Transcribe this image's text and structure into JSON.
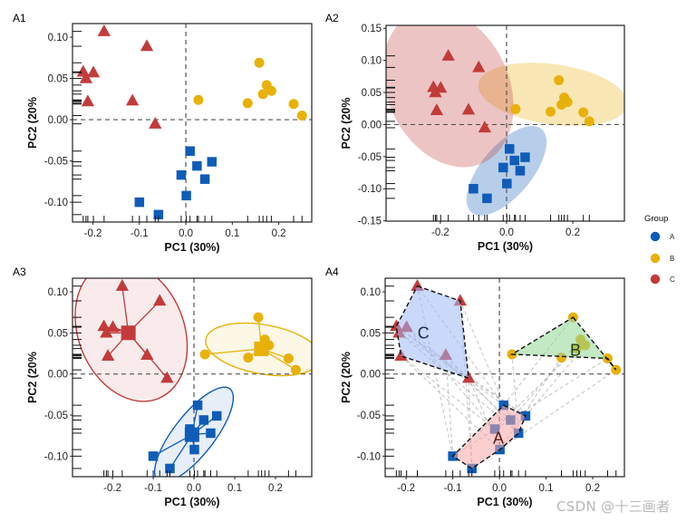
{
  "figure": {
    "watermark": "CSDN @十三画者",
    "legend": {
      "title": "Group",
      "items": [
        {
          "label": "A",
          "color": "#0F5CB8"
        },
        {
          "label": "B",
          "color": "#E8B10A"
        },
        {
          "label": "C",
          "color": "#C23B3B"
        }
      ]
    }
  },
  "chart_data": [
    {
      "id": "A1",
      "panel_label": "A1",
      "type": "scatter",
      "style": "points",
      "xlabel": "PC1 (30%)",
      "ylabel": "PC2 (20%",
      "xlim": [
        -0.244,
        0.271
      ],
      "ylim": [
        -0.124,
        0.1165
      ],
      "xticks": [
        -0.2,
        -0.1,
        0.0,
        0.1,
        0.2
      ],
      "xtick_labels": [
        "-0.2",
        "-0.1",
        "0.0",
        "0.1",
        "0.2"
      ],
      "yticks": [
        -0.1,
        -0.05,
        0.0,
        0.05,
        0.1
      ],
      "ytick_labels": [
        "-0.10",
        "-0.05",
        "0.00",
        "0.05",
        "0.10"
      ],
      "rug": true,
      "reference_lines": {
        "x": 0,
        "y": 0
      },
      "grid": false
    },
    {
      "id": "A2",
      "panel_label": "A2",
      "type": "scatter",
      "style": "ellipse-filled",
      "xlabel": "PC1 (30%)",
      "ylabel": "PC2 (20%",
      "xlim": [
        -0.364,
        0.356
      ],
      "ylim": [
        -0.1505,
        0.1545
      ],
      "xticks": [
        -0.2,
        0.0,
        0.2
      ],
      "xtick_labels": [
        "-0.2",
        "0.0",
        "0.2"
      ],
      "yticks": [
        -0.15,
        -0.1,
        -0.05,
        0.0,
        0.05,
        0.1,
        0.15
      ],
      "ytick_labels": [
        "-0.15",
        "-0.10",
        "-0.05",
        "0.00",
        "0.05",
        "0.10",
        "0.15"
      ],
      "rug": true,
      "reference_lines": {
        "x": 0,
        "y": 0
      },
      "grid": false,
      "ellipses": [
        {
          "group": "A",
          "cx": 0.0,
          "cy": -0.072,
          "rx": 0.112,
          "ry": 0.052,
          "angle_deg": 50
        },
        {
          "group": "B",
          "cx": 0.14,
          "cy": 0.047,
          "rx": 0.155,
          "ry": 0.062,
          "angle_deg": -8
        },
        {
          "group": "C",
          "cx": -0.176,
          "cy": 0.057,
          "rx": 0.17,
          "ry": 0.125,
          "angle_deg": -65
        }
      ]
    },
    {
      "id": "A3",
      "panel_label": "A3",
      "type": "scatter",
      "style": "ellipse-spider",
      "xlabel": "PC1 (30%)",
      "ylabel": "PC2 (20%",
      "xlim": [
        -0.298,
        0.289
      ],
      "ylim": [
        -0.125,
        0.1166
      ],
      "xticks": [
        -0.2,
        -0.1,
        0.0,
        0.1,
        0.2
      ],
      "xtick_labels": [
        "-0.2",
        "-0.1",
        "0.0",
        "0.1",
        "0.2"
      ],
      "yticks": [
        -0.1,
        -0.05,
        0.0,
        0.05,
        0.1
      ],
      "ytick_labels": [
        "-0.10",
        "-0.05",
        "0.00",
        "0.05",
        "0.10"
      ],
      "rug": true,
      "reference_lines": {
        "x": 0,
        "y": 0
      },
      "grid": false,
      "ellipses": [
        {
          "group": "A",
          "cx": 0.0,
          "cy": -0.074,
          "rx": 0.095,
          "ry": 0.033,
          "angle_deg": 52
        },
        {
          "group": "B",
          "cx": 0.17,
          "cy": 0.03,
          "rx": 0.095,
          "ry": 0.04,
          "angle_deg": -10
        },
        {
          "group": "C",
          "cx": -0.154,
          "cy": 0.052,
          "rx": 0.118,
          "ry": 0.086,
          "angle_deg": -68
        }
      ]
    },
    {
      "id": "A4",
      "panel_label": "A4",
      "type": "scatter",
      "style": "hull-links",
      "xlabel": "PC1 (30%)",
      "ylabel": "PC2 (20%",
      "xlim": [
        -0.245,
        0.268
      ],
      "ylim": [
        -0.125,
        0.1166
      ],
      "xticks": [
        -0.2,
        -0.1,
        0.0,
        0.1,
        0.2
      ],
      "xtick_labels": [
        "-0.2",
        "-0.1",
        "0.0",
        "0.1",
        "0.2"
      ],
      "yticks": [
        -0.1,
        -0.05,
        0.0,
        0.05,
        0.1
      ],
      "ytick_labels": [
        "-0.10",
        "-0.05",
        "0.00",
        "0.05",
        "0.10"
      ],
      "rug": true,
      "reference_lines": {
        "x": 0,
        "y": 0
      },
      "grid": false,
      "hulls": [
        {
          "group": "A",
          "label": "A",
          "fill": "#F7A8A8",
          "label_color": "#5a1a1a",
          "label_pos": [
            -0.002,
            -0.078
          ],
          "vertices": [
            [
              0.009,
              -0.038
            ],
            [
              0.056,
              -0.051
            ],
            [
              0.041,
              -0.072
            ],
            [
              0.001,
              -0.092
            ],
            [
              -0.059,
              -0.115
            ],
            [
              -0.1,
              -0.1
            ]
          ]
        },
        {
          "group": "B",
          "label": "B",
          "fill": "#8FD694",
          "label_color": "#1f3d1f",
          "label_pos": [
            0.163,
            0.029
          ],
          "vertices": [
            [
              0.158,
              0.069
            ],
            [
              0.25,
              0.005
            ],
            [
              0.232,
              0.019
            ],
            [
              0.027,
              0.024
            ]
          ]
        },
        {
          "group": "C",
          "label": "C",
          "fill": "#9EB8F5",
          "label_color": "#1b2a55",
          "label_pos": [
            -0.163,
            0.05
          ],
          "vertices": [
            [
              -0.176,
              0.107
            ],
            [
              -0.084,
              0.089
            ],
            [
              -0.066,
              -0.005
            ],
            [
              -0.211,
              0.022
            ],
            [
              -0.221,
              0.058
            ]
          ]
        }
      ]
    }
  ],
  "groups": {
    "A": {
      "shape": "square",
      "color": "#0F5CB8",
      "points": [
        [
          0.009,
          -0.038
        ],
        [
          0.024,
          -0.056
        ],
        [
          0.056,
          -0.051
        ],
        [
          -0.01,
          -0.067
        ],
        [
          0.041,
          -0.072
        ],
        [
          0.001,
          -0.092
        ],
        [
          -0.1,
          -0.1
        ],
        [
          -0.059,
          -0.115
        ]
      ]
    },
    "B": {
      "shape": "circle",
      "color": "#E8B10A",
      "points": [
        [
          0.158,
          0.069
        ],
        [
          0.174,
          0.042
        ],
        [
          0.184,
          0.035
        ],
        [
          0.166,
          0.031
        ],
        [
          0.027,
          0.024
        ],
        [
          0.133,
          0.02
        ],
        [
          0.232,
          0.019
        ],
        [
          0.25,
          0.005
        ]
      ]
    },
    "C": {
      "shape": "triangle",
      "color": "#C23B3B",
      "points": [
        [
          -0.176,
          0.107
        ],
        [
          -0.084,
          0.089
        ],
        [
          -0.221,
          0.058
        ],
        [
          -0.199,
          0.057
        ],
        [
          -0.215,
          0.05
        ],
        [
          -0.211,
          0.022
        ],
        [
          -0.115,
          0.023
        ],
        [
          -0.066,
          -0.005
        ]
      ]
    }
  }
}
